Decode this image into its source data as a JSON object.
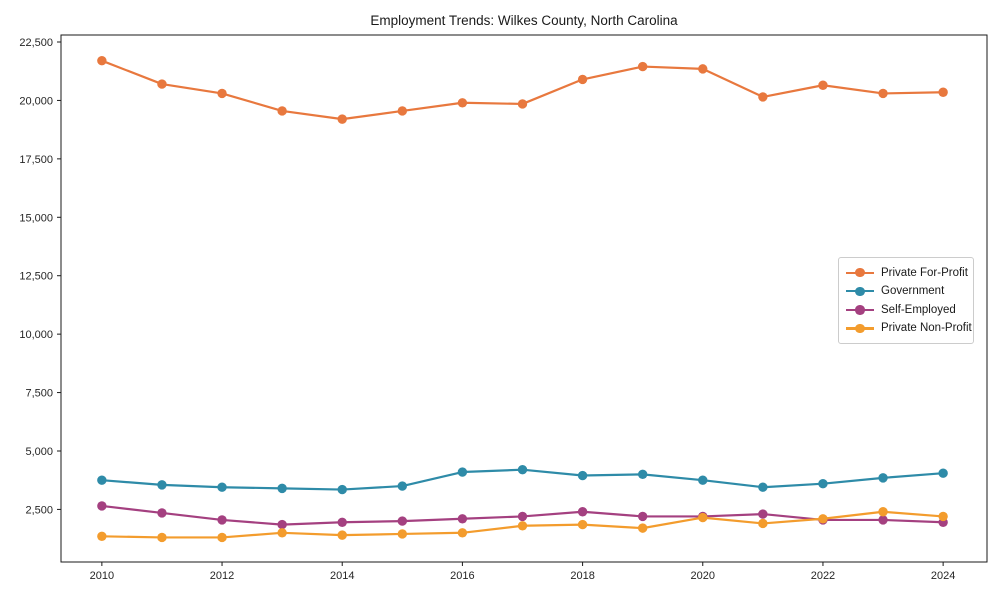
{
  "chart_data": {
    "type": "line",
    "title": "Employment Trends: Wilkes County, North Carolina",
    "x": [
      2010,
      2011,
      2012,
      2013,
      2014,
      2015,
      2016,
      2017,
      2018,
      2019,
      2020,
      2021,
      2022,
      2023,
      2024
    ],
    "series": [
      {
        "name": "Private For-Profit",
        "color": "#e8783e",
        "values": [
          21700,
          20700,
          20300,
          19550,
          19200,
          19550,
          19900,
          19850,
          20900,
          21450,
          21350,
          20150,
          20650,
          20300,
          20350
        ]
      },
      {
        "name": "Government",
        "color": "#2e8ba8",
        "values": [
          3750,
          3550,
          3450,
          3400,
          3350,
          3500,
          4100,
          4200,
          3950,
          4000,
          3750,
          3450,
          3600,
          3850,
          4050
        ]
      },
      {
        "name": "Self-Employed",
        "color": "#a44080",
        "values": [
          2650,
          2350,
          2050,
          1850,
          1950,
          2000,
          2100,
          2200,
          2400,
          2200,
          2200,
          2300,
          2050,
          2050,
          1950
        ]
      },
      {
        "name": "Private Non-Profit",
        "color": "#f39c2d",
        "values": [
          1350,
          1300,
          1300,
          1500,
          1400,
          1450,
          1500,
          1800,
          1850,
          1700,
          2150,
          1900,
          2100,
          2400,
          2200
        ]
      }
    ],
    "xticks": [
      2010,
      2012,
      2014,
      2016,
      2018,
      2020,
      2022,
      2024
    ],
    "xtick_labels": [
      "2010",
      "2012",
      "2014",
      "2016",
      "2018",
      "2020",
      "2022",
      "2024"
    ],
    "yticks": [
      2500,
      5000,
      7500,
      10000,
      12500,
      15000,
      17500,
      20000,
      22500
    ],
    "ytick_labels": [
      "2,500",
      "5,000",
      "7,500",
      "10,000",
      "12,500",
      "15,000",
      "17,500",
      "20,000",
      "22,500"
    ],
    "xlabel": "",
    "ylabel": "",
    "xlim": [
      2009.32,
      2024.73
    ],
    "ylim": [
      250,
      22800
    ],
    "grid": false,
    "legend_position": "center-right"
  }
}
